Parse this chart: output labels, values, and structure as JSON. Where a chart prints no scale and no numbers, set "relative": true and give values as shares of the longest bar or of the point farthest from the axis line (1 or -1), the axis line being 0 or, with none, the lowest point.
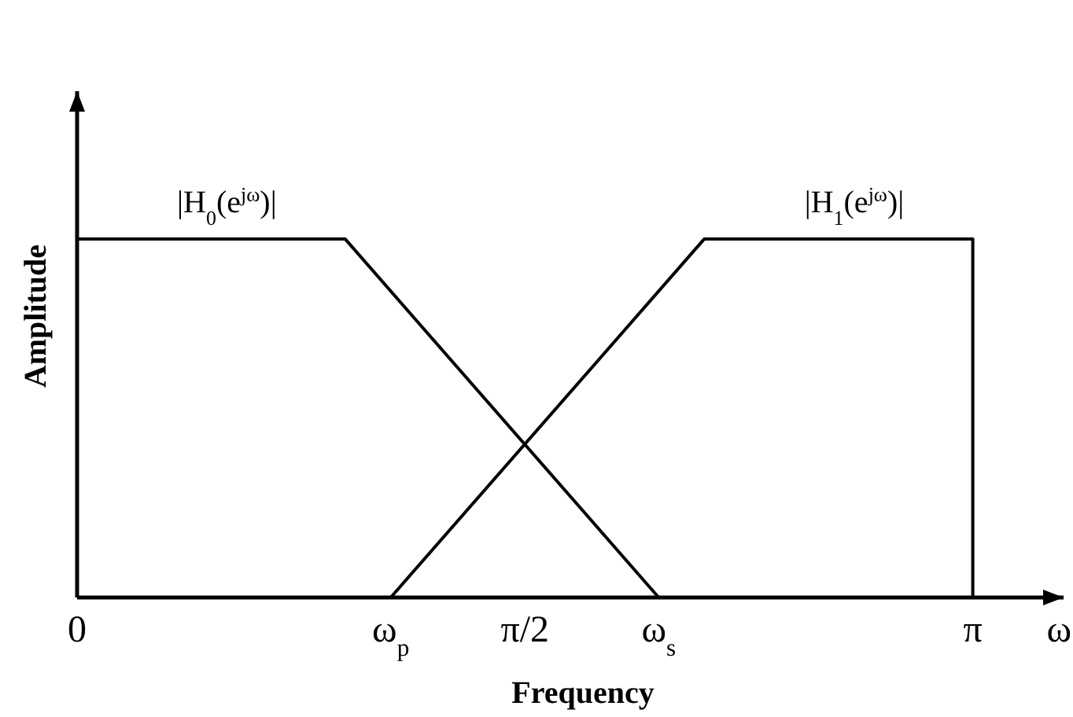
{
  "chart_data": {
    "type": "line",
    "relative": true,
    "xlabel": "Frequency",
    "ylabel": "Amplitude",
    "annotations": [
      "ω"
    ],
    "xlim": [
      0,
      3.46
    ],
    "xticks": [
      0,
      {
        "value": 1.1,
        "label": "ω$_{p}$"
      },
      {
        "value": 1.5708,
        "label": "π/2"
      },
      {
        "value": 2.04,
        "label": "ω$_{s}$"
      },
      {
        "value": 3.1416,
        "label": "π"
      }
    ],
    "series": [
      {
        "name": "|H$_{0}$(e$^{jω}$)|",
        "color": "#000000",
        "x": [
          0,
          0.94,
          2.04
        ],
        "values": [
          1,
          1,
          0
        ]
      },
      {
        "name": "|H$_{1}$(e$^{jω}$)|",
        "color": "#000000",
        "x": [
          1.1,
          2.2,
          3.1416,
          3.1416
        ],
        "values": [
          0,
          1,
          1,
          0
        ]
      }
    ]
  }
}
